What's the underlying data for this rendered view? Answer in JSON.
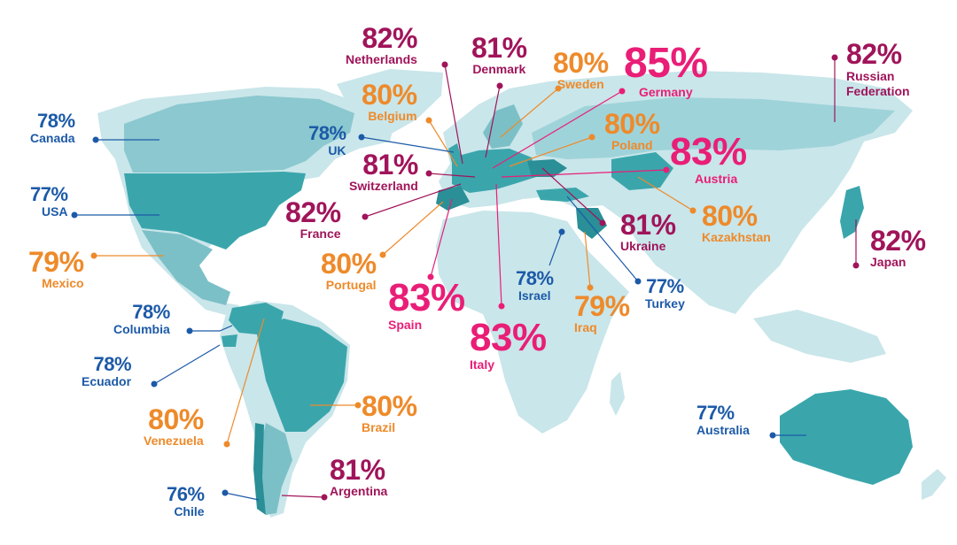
{
  "colors": {
    "ocean": "#ffffff",
    "land_base": "#c9e6ea",
    "land_mid": "#9fd3da",
    "land_survey": "#3aa6ac",
    "land_dark": "#2a8f96",
    "blue": "#1c5aa8",
    "orange": "#ee8a2a",
    "purple": "#a0145a",
    "pink": "#e91e77"
  },
  "labels": [
    {
      "id": "canada",
      "pct": "78%",
      "name": "Canada",
      "color": "blue"
    },
    {
      "id": "usa",
      "pct": "77%",
      "name": "USA",
      "color": "blue"
    },
    {
      "id": "mexico",
      "pct": "79%",
      "name": "Mexico",
      "color": "orange"
    },
    {
      "id": "columbia",
      "pct": "78%",
      "name": "Columbia",
      "color": "blue"
    },
    {
      "id": "ecuador",
      "pct": "78%",
      "name": "Ecuador",
      "color": "blue"
    },
    {
      "id": "venezuela",
      "pct": "80%",
      "name": "Venezuela",
      "color": "orange"
    },
    {
      "id": "chile",
      "pct": "76%",
      "name": "Chile",
      "color": "blue"
    },
    {
      "id": "argentina",
      "pct": "81%",
      "name": "Argentina",
      "color": "purple"
    },
    {
      "id": "brazil",
      "pct": "80%",
      "name": "Brazil",
      "color": "orange"
    },
    {
      "id": "netherlands",
      "pct": "82%",
      "name": "Netherlands",
      "color": "purple"
    },
    {
      "id": "belgium",
      "pct": "80%",
      "name": "Belgium",
      "color": "orange"
    },
    {
      "id": "uk",
      "pct": "78%",
      "name": "UK",
      "color": "blue"
    },
    {
      "id": "switzerland",
      "pct": "81%",
      "name": "Switzerland",
      "color": "purple"
    },
    {
      "id": "france",
      "pct": "82%",
      "name": "France",
      "color": "purple"
    },
    {
      "id": "portugal",
      "pct": "80%",
      "name": "Portugal",
      "color": "orange"
    },
    {
      "id": "spain",
      "pct": "83%",
      "name": "Spain",
      "color": "pink"
    },
    {
      "id": "denmark",
      "pct": "81%",
      "name": "Denmark",
      "color": "purple"
    },
    {
      "id": "sweden",
      "pct": "80%",
      "name": "Sweden",
      "color": "orange"
    },
    {
      "id": "germany",
      "pct": "85%",
      "name": "Germany",
      "color": "pink"
    },
    {
      "id": "poland",
      "pct": "80%",
      "name": "Poland",
      "color": "orange"
    },
    {
      "id": "austria",
      "pct": "83%",
      "name": "Austria",
      "color": "pink"
    },
    {
      "id": "kazakhstan",
      "pct": "80%",
      "name": "Kazakhstan",
      "color": "orange"
    },
    {
      "id": "ukraine",
      "pct": "81%",
      "name": "Ukraine",
      "color": "purple"
    },
    {
      "id": "israel",
      "pct": "78%",
      "name": "Israel",
      "color": "blue"
    },
    {
      "id": "turkey",
      "pct": "77%",
      "name": "Turkey",
      "color": "blue"
    },
    {
      "id": "iraq",
      "pct": "79%",
      "name": "Iraq",
      "color": "orange"
    },
    {
      "id": "italy",
      "pct": "83%",
      "name": "Italy",
      "color": "pink"
    },
    {
      "id": "russia",
      "pct": "82%",
      "name": "Russian\nFederation",
      "color": "purple"
    },
    {
      "id": "japan",
      "pct": "82%",
      "name": "Japan",
      "color": "purple"
    },
    {
      "id": "australia",
      "pct": "77%",
      "name": "Australia",
      "color": "blue"
    }
  ]
}
